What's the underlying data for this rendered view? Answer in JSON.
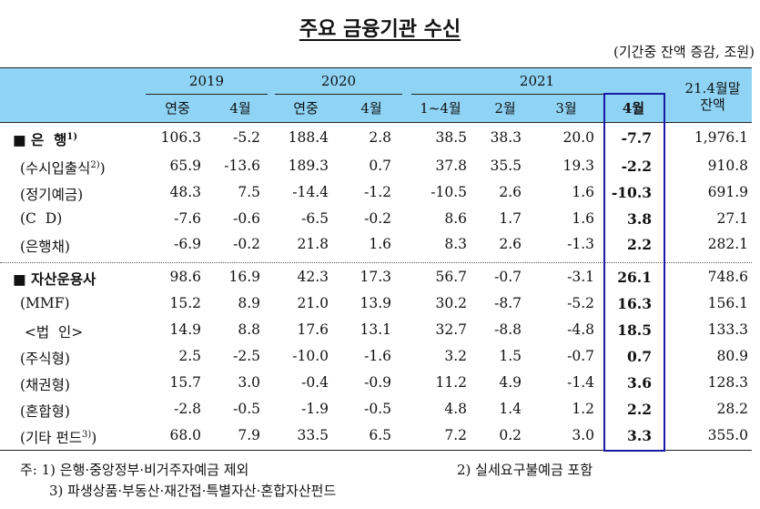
{
  "title": "주요 금융기관 수신",
  "unit": "(기간중 잔액 증감, 조원)",
  "header": {
    "years": [
      "2019",
      "2020",
      "2021"
    ],
    "sub": [
      "연중",
      "4월",
      "연중",
      "4월",
      "1~4월",
      "2월",
      "3월",
      "4월"
    ],
    "balance_line1": "21.4월말",
    "balance_line2": "잔액"
  },
  "rows": [
    {
      "label": "■ 은  행",
      "sup": "1)",
      "main": true,
      "values": [
        "106.3",
        "-5.2",
        "188.4",
        "2.8",
        "38.5",
        "38.3",
        "20.0",
        "-7.7",
        "1,976.1"
      ]
    },
    {
      "label": "(수시입출식",
      "sup": "2)",
      "suffix": ")",
      "values": [
        "65.9",
        "-13.6",
        "189.3",
        "0.7",
        "37.8",
        "35.5",
        "19.3",
        "-2.2",
        "910.8"
      ]
    },
    {
      "label": "(정기예금)",
      "values": [
        "48.3",
        "7.5",
        "-14.4",
        "-1.2",
        "-10.5",
        "2.6",
        "1.6",
        "-10.3",
        "691.9"
      ]
    },
    {
      "label": "(C  D)",
      "values": [
        "-7.6",
        "-0.6",
        "-6.5",
        "-0.2",
        "8.6",
        "1.7",
        "1.6",
        "3.8",
        "27.1"
      ]
    },
    {
      "label": "(은행채)",
      "values": [
        "-6.9",
        "-0.2",
        "21.8",
        "1.6",
        "8.3",
        "2.6",
        "-1.3",
        "2.2",
        "282.1"
      ]
    },
    {
      "label": "■ 자산운용사",
      "main": true,
      "values": [
        "98.6",
        "16.9",
        "42.3",
        "17.3",
        "56.7",
        "-0.7",
        "-3.1",
        "26.1",
        "748.6"
      ]
    },
    {
      "label": "(MMF)",
      "values": [
        "15.2",
        "8.9",
        "21.0",
        "13.9",
        "30.2",
        "-8.7",
        "-5.2",
        "16.3",
        "156.1"
      ]
    },
    {
      "label": " <법  인>",
      "values": [
        "14.9",
        "8.8",
        "17.6",
        "13.1",
        "32.7",
        "-8.8",
        "-4.8",
        "18.5",
        "133.3"
      ]
    },
    {
      "label": "(주식형)",
      "values": [
        "2.5",
        "-2.5",
        "-10.0",
        "-1.6",
        "3.2",
        "1.5",
        "-0.7",
        "0.7",
        "80.9"
      ]
    },
    {
      "label": "(채권형)",
      "values": [
        "15.7",
        "3.0",
        "-0.4",
        "-0.9",
        "11.2",
        "4.9",
        "-1.4",
        "3.6",
        "128.3"
      ]
    },
    {
      "label": "(혼합형)",
      "values": [
        "-2.8",
        "-0.5",
        "-1.9",
        "-0.5",
        "4.8",
        "1.4",
        "1.2",
        "2.2",
        "28.2"
      ]
    },
    {
      "label": "(기타 펀드",
      "sup": "3)",
      "suffix": ")",
      "values": [
        "68.0",
        "7.9",
        "33.5",
        "6.5",
        "7.2",
        "0.2",
        "3.0",
        "3.3",
        "355.0"
      ]
    }
  ],
  "notes": {
    "n1": "주: 1) 은행·중앙정부·비거주자예금 제외",
    "n2": "2) 실세요구불예금 포함",
    "n3": "3) 파생상품·부동산·재간접·특별자산·혼합자산펀드"
  },
  "colors": {
    "header_bg": "#8fd4f5",
    "highlight_border": "#1a1aa6"
  }
}
